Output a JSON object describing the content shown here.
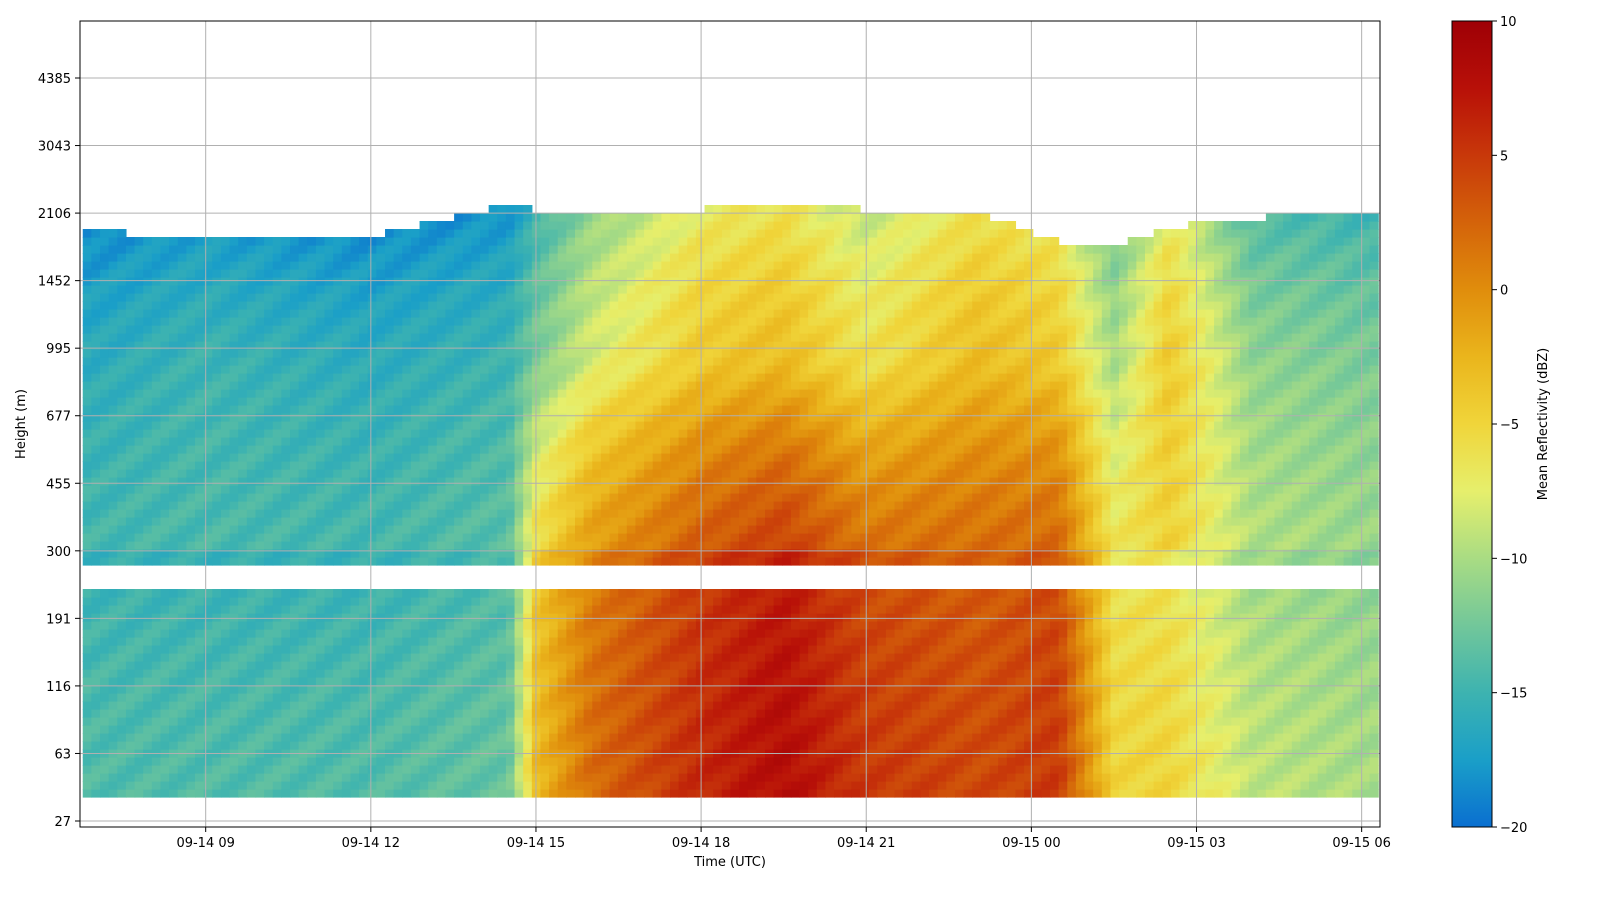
{
  "chart_data": {
    "type": "heatmap",
    "title": "",
    "xlabel": "Time (UTC)",
    "ylabel": "Height (m)",
    "x_tick_labels": [
      "09-14 09",
      "09-14 12",
      "09-14 15",
      "09-14 18",
      "09-14 21",
      "09-15 00",
      "09-15 03",
      "09-15 06"
    ],
    "y_tick_labels": [
      "27",
      "63",
      "116",
      "191",
      "300",
      "455",
      "677",
      "995",
      "1452",
      "2106",
      "3043",
      "4385"
    ],
    "x_range": [
      "2024-09-14 06:43",
      "2024-09-15 06:20"
    ],
    "x_ticks": [
      "2024-09-14 09:00",
      "2024-09-14 12:00",
      "2024-09-14 15:00",
      "2024-09-14 18:00",
      "2024-09-14 21:00",
      "2024-09-15 00:00",
      "2024-09-15 03:00",
      "2024-09-15 06:00"
    ],
    "y_ticks_m": [
      27,
      63,
      116,
      191,
      300,
      455,
      677,
      995,
      1452,
      2106,
      3043,
      4385
    ],
    "grid": true,
    "colorbar": {
      "label": "Mean Reflectivity (dBZ)",
      "min": -20,
      "max": 10,
      "tick_labels": [
        "10",
        "5",
        "0",
        "−5",
        "−10",
        "−15",
        "−20"
      ],
      "tick_values": [
        10,
        5,
        0,
        -5,
        -10,
        -15,
        -20
      ],
      "colors": [
        "#0a6fd0",
        "#1a9fc8",
        "#3db3b0",
        "#72c79a",
        "#a9dc83",
        "#e6ef6c",
        "#f0d53a",
        "#eab51c",
        "#e08d0c",
        "#d4630a",
        "#c8380a",
        "#b81008",
        "#9e0006"
      ]
    },
    "series": [
      {
        "time": "2024-09-14 07:00",
        "cloud_top_m": 1900,
        "surface_dbz": -14,
        "upper_dbz": -16
      },
      {
        "time": "2024-09-14 09:00",
        "cloud_top_m": 1850,
        "surface_dbz": -14,
        "upper_dbz": -15
      },
      {
        "time": "2024-09-14 12:00",
        "cloud_top_m": 1850,
        "surface_dbz": -14,
        "upper_dbz": -16
      },
      {
        "time": "2024-09-14 14:30",
        "cloud_top_m": 2200,
        "surface_dbz": -13,
        "upper_dbz": -15
      },
      {
        "time": "2024-09-14 15:00",
        "cloud_top_m": 2150,
        "surface_dbz": -3,
        "upper_dbz": -12
      },
      {
        "time": "2024-09-14 16:00",
        "cloud_top_m": 2150,
        "surface_dbz": 2,
        "upper_dbz": -8
      },
      {
        "time": "2024-09-14 18:00",
        "cloud_top_m": 2150,
        "surface_dbz": 6,
        "upper_dbz": -4
      },
      {
        "time": "2024-09-14 19:30",
        "cloud_top_m": 2200,
        "surface_dbz": 8,
        "upper_dbz": -3
      },
      {
        "time": "2024-09-14 21:00",
        "cloud_top_m": 2150,
        "surface_dbz": 5,
        "upper_dbz": -6
      },
      {
        "time": "2024-09-14 23:00",
        "cloud_top_m": 2100,
        "surface_dbz": 4,
        "upper_dbz": -3
      },
      {
        "time": "2024-09-15 00:30",
        "cloud_top_m": 1800,
        "surface_dbz": 5,
        "upper_dbz": -4
      },
      {
        "time": "2024-09-15 01:30",
        "cloud_top_m": 1750,
        "surface_dbz": -5,
        "upper_dbz": -10
      },
      {
        "time": "2024-09-15 02:30",
        "cloud_top_m": 1950,
        "surface_dbz": -5,
        "upper_dbz": -4
      },
      {
        "time": "2024-09-15 04:00",
        "cloud_top_m": 2050,
        "surface_dbz": -9,
        "upper_dbz": -11
      },
      {
        "time": "2024-09-15 06:00",
        "cloud_top_m": 2150,
        "surface_dbz": -10,
        "upper_dbz": -12
      }
    ]
  }
}
